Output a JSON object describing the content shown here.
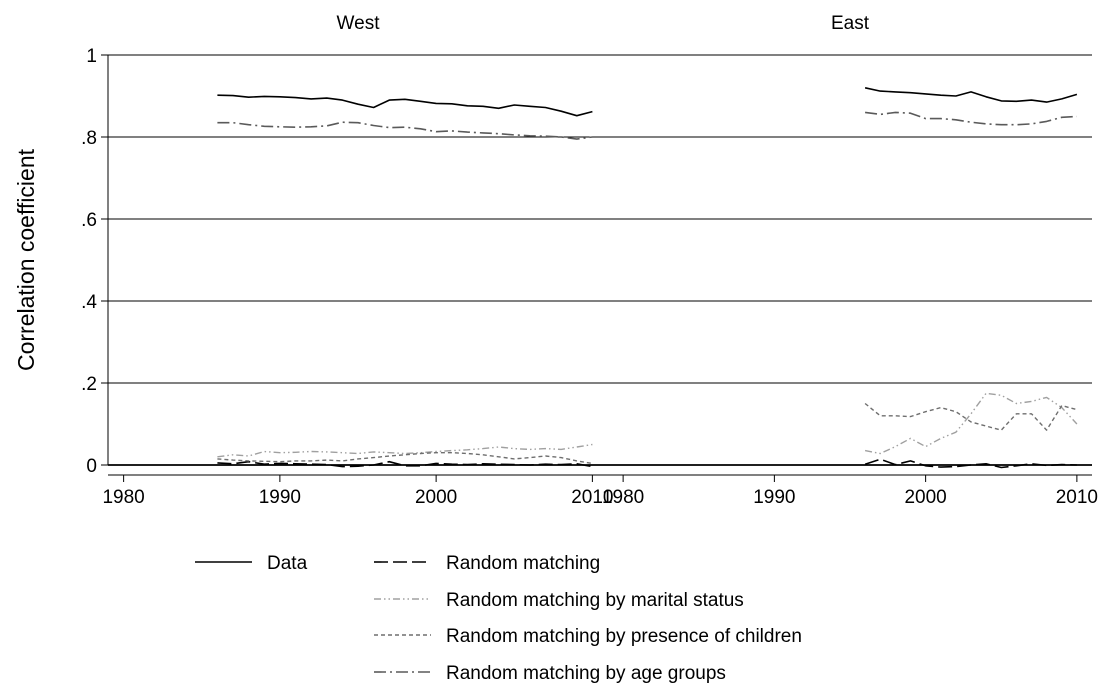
{
  "chart_data": {
    "type": "line",
    "ylabel": "Correlation coefficient",
    "ylim": [
      0,
      1
    ],
    "yticks": [
      0,
      0.2,
      0.4,
      0.6,
      0.8,
      1
    ],
    "ytick_labels": [
      "0",
      ".2",
      ".4",
      ".6",
      ".8",
      "1"
    ],
    "xlim": [
      1979,
      2011
    ],
    "xticks": [
      1980,
      1990,
      2000,
      2010
    ],
    "xtick_labels": [
      "1980",
      "1990",
      "2000",
      "2010"
    ],
    "grid": "horizontal",
    "legend_position": "bottom",
    "series_styles": [
      {
        "name": "Data",
        "color": "#000000",
        "dash": "",
        "width": 1.6
      },
      {
        "name": "Random matching",
        "color": "#000000",
        "dash": "14 5",
        "width": 1.6
      },
      {
        "name": "Random matching by marital status",
        "color": "#a0a0a0",
        "dash": "7 3 1.5 3 1.5 3",
        "width": 1.4
      },
      {
        "name": "Random matching by presence of children",
        "color": "#6e6e6e",
        "dash": "4 3",
        "width": 1.4
      },
      {
        "name": "Random matching by age groups",
        "color": "#5a5a5a",
        "dash": "12 4 2 4",
        "width": 1.6
      }
    ],
    "panels": [
      {
        "title": "West",
        "x": [
          1986,
          1987,
          1988,
          1989,
          1990,
          1991,
          1992,
          1993,
          1994,
          1995,
          1996,
          1997,
          1998,
          1999,
          2000,
          2001,
          2002,
          2003,
          2004,
          2005,
          2006,
          2007,
          2008,
          2009,
          2010
        ],
        "series": [
          {
            "name": "Data",
            "values": [
              0.902,
              0.901,
              0.897,
              0.899,
              0.898,
              0.896,
              0.893,
              0.895,
              0.89,
              0.88,
              0.872,
              0.89,
              0.892,
              0.887,
              0.882,
              0.881,
              0.876,
              0.875,
              0.87,
              0.878,
              0.875,
              0.872,
              0.863,
              0.852,
              0.862
            ]
          },
          {
            "name": "Random matching",
            "values": [
              0.005,
              0.003,
              0.008,
              0.002,
              0.004,
              0.003,
              0.002,
              0.001,
              -0.004,
              -0.003,
              0.0,
              0.008,
              -0.002,
              -0.002,
              0.004,
              0.002,
              0.001,
              0.003,
              0.002,
              0.001,
              0.0,
              0.002,
              0.001,
              0.003,
              -0.004
            ]
          },
          {
            "name": "Random matching by marital status",
            "values": [
              0.02,
              0.025,
              0.022,
              0.033,
              0.03,
              0.031,
              0.033,
              0.032,
              0.03,
              0.028,
              0.032,
              0.03,
              0.028,
              0.03,
              0.033,
              0.035,
              0.037,
              0.04,
              0.044,
              0.04,
              0.038,
              0.04,
              0.038,
              0.044,
              0.05
            ]
          },
          {
            "name": "Random matching by presence of children",
            "values": [
              0.015,
              0.012,
              0.01,
              0.009,
              0.008,
              0.01,
              0.01,
              0.012,
              0.01,
              0.015,
              0.018,
              0.022,
              0.025,
              0.028,
              0.03,
              0.03,
              0.028,
              0.025,
              0.02,
              0.015,
              0.018,
              0.022,
              0.018,
              0.01,
              0.004
            ]
          },
          {
            "name": "Random matching by age groups",
            "values": [
              0.835,
              0.835,
              0.83,
              0.826,
              0.825,
              0.824,
              0.825,
              0.827,
              0.836,
              0.835,
              0.828,
              0.823,
              0.824,
              0.82,
              0.813,
              0.815,
              0.812,
              0.81,
              0.808,
              0.805,
              0.803,
              0.802,
              0.8,
              0.795,
              0.8
            ]
          }
        ]
      },
      {
        "title": "East",
        "x": [
          1996,
          1997,
          1998,
          1999,
          2000,
          2001,
          2002,
          2003,
          2004,
          2005,
          2006,
          2007,
          2008,
          2009,
          2010
        ],
        "series": [
          {
            "name": "Data",
            "values": [
              0.92,
              0.912,
              0.91,
              0.908,
              0.905,
              0.902,
              0.9,
              0.91,
              0.898,
              0.888,
              0.887,
              0.89,
              0.885,
              0.893,
              0.904
            ]
          },
          {
            "name": "Random matching",
            "values": [
              0.002,
              0.014,
              0.001,
              0.01,
              -0.002,
              -0.005,
              -0.004,
              0.0,
              0.003,
              -0.006,
              -0.002,
              0.003,
              -0.001,
              0.001,
              0.0
            ]
          },
          {
            "name": "Random matching by marital status",
            "values": [
              0.035,
              0.028,
              0.045,
              0.065,
              0.045,
              0.065,
              0.08,
              0.125,
              0.175,
              0.17,
              0.15,
              0.155,
              0.165,
              0.14,
              0.1
            ]
          },
          {
            "name": "Random matching by presence of children",
            "values": [
              0.15,
              0.12,
              0.12,
              0.118,
              0.13,
              0.14,
              0.13,
              0.105,
              0.095,
              0.085,
              0.125,
              0.125,
              0.085,
              0.145,
              0.135
            ]
          },
          {
            "name": "Random matching by age groups",
            "values": [
              0.86,
              0.855,
              0.86,
              0.858,
              0.845,
              0.845,
              0.842,
              0.836,
              0.832,
              0.83,
              0.83,
              0.832,
              0.838,
              0.848,
              0.85
            ]
          }
        ]
      }
    ]
  }
}
